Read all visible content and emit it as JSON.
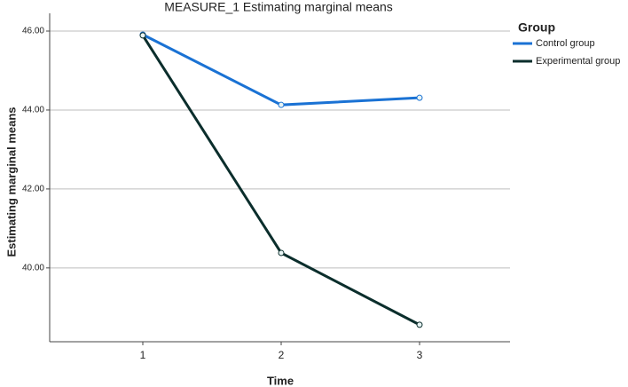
{
  "chart_data": {
    "type": "line",
    "title": "MEASURE_1 Estimating marginal means",
    "x_label": "Time",
    "y_label": "Estimating marginal means",
    "categories": [
      "1",
      "2",
      "3"
    ],
    "series": [
      {
        "name": "Control group",
        "color": "#1a72d4",
        "values": [
          45.91,
          44.13,
          44.31
        ]
      },
      {
        "name": "Experimental group",
        "color": "#0b2e2c",
        "values": [
          45.89,
          40.38,
          38.56
        ]
      }
    ],
    "ylim": [
      38.13,
      46.45
    ],
    "yticks": [
      {
        "value": 40,
        "label": "40.00"
      },
      {
        "value": 42,
        "label": "42.00"
      },
      {
        "value": 44,
        "label": "44.00"
      },
      {
        "value": 46,
        "label": "46.00"
      }
    ],
    "grid": true,
    "legend_title": "Group",
    "legend_position": "right"
  }
}
